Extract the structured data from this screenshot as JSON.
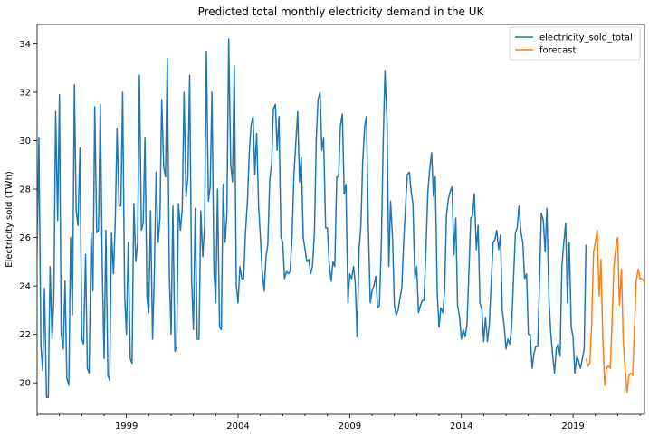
{
  "chart_data": {
    "type": "line",
    "title": "Predicted total monthly electricity demand in the UK",
    "xlabel": "",
    "ylabel": "Electricity sold (TWh)",
    "xlim": [
      1995.0,
      2022.2
    ],
    "ylim": [
      18.7,
      34.8
    ],
    "x_ticks": [
      1999,
      2004,
      2009,
      2014,
      2019
    ],
    "x_tick_labels": [
      "1999",
      "2004",
      "2009",
      "2014",
      "2019"
    ],
    "y_ticks": [
      20,
      22,
      24,
      26,
      28,
      30,
      32,
      34
    ],
    "y_tick_labels": [
      "20",
      "22",
      "24",
      "26",
      "28",
      "30",
      "32",
      "34"
    ],
    "legend_position": "top-right",
    "grid": false,
    "series": [
      {
        "name": "electricity_sold_total",
        "color": "#1f77b4",
        "x": [
          1995.0,
          1995.08,
          1995.17,
          1995.25,
          1995.33,
          1995.42,
          1995.5,
          1995.58,
          1995.67,
          1995.75,
          1995.83,
          1995.92,
          1996.0,
          1996.08,
          1996.17,
          1996.25,
          1996.33,
          1996.42,
          1996.5,
          1996.58,
          1996.67,
          1996.75,
          1996.83,
          1996.92,
          1997.0,
          1997.08,
          1997.17,
          1997.25,
          1997.33,
          1997.42,
          1997.5,
          1997.58,
          1997.67,
          1997.75,
          1997.83,
          1997.92,
          1998.0,
          1998.08,
          1998.17,
          1998.25,
          1998.33,
          1998.42,
          1998.5,
          1998.58,
          1998.67,
          1998.75,
          1998.83,
          1998.92,
          1999.0,
          1999.08,
          1999.17,
          1999.25,
          1999.33,
          1999.42,
          1999.5,
          1999.58,
          1999.67,
          1999.75,
          1999.83,
          1999.92,
          2000.0,
          2000.08,
          2000.17,
          2000.25,
          2000.33,
          2000.42,
          2000.5,
          2000.58,
          2000.67,
          2000.75,
          2000.83,
          2000.92,
          2001.0,
          2001.08,
          2001.17,
          2001.25,
          2001.33,
          2001.42,
          2001.5,
          2001.58,
          2001.67,
          2001.75,
          2001.83,
          2001.92,
          2002.0,
          2002.08,
          2002.17,
          2002.25,
          2002.33,
          2002.42,
          2002.5,
          2002.58,
          2002.67,
          2002.75,
          2002.83,
          2002.92,
          2003.0,
          2003.08,
          2003.17,
          2003.25,
          2003.33,
          2003.42,
          2003.5,
          2003.58,
          2003.67,
          2003.75,
          2003.83,
          2003.92,
          2004.0,
          2004.08,
          2004.17,
          2004.25,
          2004.33,
          2004.42,
          2004.5,
          2004.58,
          2004.67,
          2004.75,
          2004.83,
          2004.92,
          2005.0,
          2005.08,
          2005.17,
          2005.25,
          2005.33,
          2005.42,
          2005.5,
          2005.58,
          2005.67,
          2005.75,
          2005.83,
          2005.92,
          2006.0,
          2006.08,
          2006.17,
          2006.25,
          2006.33,
          2006.42,
          2006.5,
          2006.58,
          2006.67,
          2006.75,
          2006.83,
          2006.92,
          2007.0,
          2007.08,
          2007.17,
          2007.25,
          2007.33,
          2007.42,
          2007.5,
          2007.58,
          2007.67,
          2007.75,
          2007.83,
          2007.92,
          2008.0,
          2008.08,
          2008.17,
          2008.25,
          2008.33,
          2008.42,
          2008.5,
          2008.58,
          2008.67,
          2008.75,
          2008.83,
          2008.92,
          2009.0,
          2009.08,
          2009.17,
          2009.25,
          2009.33,
          2009.42,
          2009.5,
          2009.58,
          2009.67,
          2009.75,
          2009.83,
          2009.92,
          2010.0,
          2010.08,
          2010.17,
          2010.25,
          2010.33,
          2010.42,
          2010.5,
          2010.58,
          2010.67,
          2010.75,
          2010.83,
          2010.92,
          2011.0,
          2011.08,
          2011.17,
          2011.25,
          2011.33,
          2011.42,
          2011.5,
          2011.58,
          2011.67,
          2011.75,
          2011.83,
          2011.92,
          2012.0,
          2012.08,
          2012.17,
          2012.25,
          2012.33,
          2012.42,
          2012.5,
          2012.58,
          2012.67,
          2012.75,
          2012.83,
          2012.92,
          2013.0,
          2013.08,
          2013.17,
          2013.25,
          2013.33,
          2013.42,
          2013.5,
          2013.58,
          2013.67,
          2013.75,
          2013.83,
          2013.92,
          2014.0,
          2014.08,
          2014.17,
          2014.25,
          2014.33,
          2014.42,
          2014.5,
          2014.58,
          2014.67,
          2014.75,
          2014.83,
          2014.92,
          2015.0,
          2015.08,
          2015.17,
          2015.25,
          2015.33,
          2015.42,
          2015.5,
          2015.58,
          2015.67,
          2015.75,
          2015.83,
          2015.92,
          2016.0,
          2016.08,
          2016.17,
          2016.25,
          2016.33,
          2016.42,
          2016.5,
          2016.58,
          2016.67,
          2016.75,
          2016.83,
          2016.92,
          2017.0,
          2017.08,
          2017.17,
          2017.25,
          2017.33,
          2017.42,
          2017.5,
          2017.58,
          2017.67,
          2017.75,
          2017.83,
          2017.92,
          2018.0,
          2018.08,
          2018.17,
          2018.25,
          2018.33,
          2018.42,
          2018.5,
          2018.58,
          2018.67,
          2018.75,
          2018.83,
          2018.92,
          2019.0,
          2019.08,
          2019.17,
          2019.25,
          2019.33,
          2019.42,
          2019.5,
          2019.58
        ],
        "values": [
          25.2,
          30.1,
          21.5,
          20.5,
          23.9,
          19.4,
          19.4,
          24.8,
          21.8,
          23.5,
          31.2,
          26.7,
          31.9,
          22.0,
          21.4,
          24.2,
          20.2,
          19.9,
          26.0,
          22.8,
          32.3,
          27.1,
          26.5,
          29.7,
          21.8,
          21.6,
          25.3,
          20.6,
          20.4,
          26.2,
          23.8,
          31.4,
          26.2,
          26.3,
          31.5,
          24.6,
          21.0,
          26.3,
          20.3,
          20.1,
          26.2,
          24.5,
          26.7,
          30.5,
          27.3,
          27.3,
          32.0,
          23.6,
          22.0,
          25.8,
          21.0,
          20.8,
          27.4,
          25.0,
          25.8,
          32.7,
          26.3,
          26.6,
          30.1,
          23.5,
          22.9,
          27.1,
          21.8,
          24.5,
          28.7,
          25.8,
          26.8,
          31.7,
          28.9,
          28.5,
          33.4,
          24.5,
          22.0,
          27.3,
          21.3,
          21.5,
          27.4,
          26.3,
          27.2,
          32.0,
          27.7,
          28.5,
          32.7,
          24.2,
          22.2,
          27.2,
          21.8,
          21.8,
          27.1,
          25.2,
          26.5,
          33.7,
          27.5,
          28.1,
          32.0,
          24.6,
          23.3,
          28.0,
          22.3,
          22.2,
          28.2,
          25.8,
          27.0,
          34.2,
          29.0,
          28.3,
          33.1,
          24.0,
          23.3,
          24.8,
          24.3,
          24.3,
          26.2,
          27.5,
          29.5,
          30.6,
          31.0,
          28.6,
          30.3,
          27.3,
          26.0,
          24.6,
          23.8,
          25.2,
          25.7,
          28.4,
          29.0,
          31.3,
          31.5,
          29.6,
          31.0,
          26.0,
          25.8,
          24.3,
          24.6,
          24.5,
          24.6,
          26.1,
          28.6,
          29.8,
          31.2,
          28.3,
          29.3,
          26.0,
          25.5,
          25.0,
          25.1,
          24.5,
          24.8,
          26.2,
          30.0,
          31.7,
          32.0,
          29.6,
          30.1,
          26.4,
          26.4,
          24.9,
          24.2,
          25.0,
          24.8,
          28.5,
          28.5,
          30.6,
          31.1,
          27.8,
          28.2,
          23.3,
          24.5,
          24.3,
          24.8,
          24.1,
          21.9,
          25.5,
          26.5,
          29.1,
          30.6,
          31.0,
          26.6,
          23.3,
          23.8,
          24.0,
          24.4,
          23.1,
          23.2,
          25.9,
          30.0,
          32.9,
          30.8,
          24.8,
          27.5,
          25.9,
          23.2,
          22.8,
          23.0,
          23.5,
          23.9,
          25.9,
          27.3,
          28.6,
          28.7,
          27.9,
          27.4,
          24.3,
          24.8,
          22.9,
          23.2,
          23.4,
          23.4,
          25.7,
          27.9,
          28.8,
          29.5,
          27.7,
          28.5,
          23.7,
          22.3,
          23.1,
          22.9,
          23.8,
          26.9,
          27.6,
          27.9,
          28.1,
          25.3,
          26.8,
          23.2,
          22.7,
          21.8,
          22.2,
          21.9,
          22.4,
          24.4,
          26.8,
          26.9,
          27.8,
          25.5,
          26.5,
          23.3,
          23.0,
          21.7,
          22.7,
          21.7,
          22.4,
          24.0,
          25.8,
          25.9,
          26.3,
          25.5,
          26.1,
          23.0,
          22.3,
          21.4,
          21.8,
          21.6,
          22.3,
          24.2,
          26.2,
          26.4,
          27.3,
          26.2,
          25.8,
          24.3,
          24.5,
          22.0,
          22.0,
          20.6,
          21.2,
          21.5,
          21.5,
          24.2,
          27.0,
          26.7,
          25.4,
          27.2,
          23.5,
          22.1,
          21.2,
          20.4,
          21.4,
          21.6,
          21.1,
          24.8,
          25.7,
          26.6,
          23.3,
          25.8,
          22.3,
          21.9,
          20.4,
          21.1,
          20.9,
          20.6,
          21.0,
          21.4,
          25.7
        ]
      },
      {
        "name": "forecast",
        "color": "#ff7f0e",
        "x": [
          2019.58,
          2019.67,
          2019.75,
          2019.83,
          2019.92,
          2020.0,
          2020.08,
          2020.17,
          2020.25,
          2020.33,
          2020.42,
          2020.5,
          2020.58,
          2020.67,
          2020.75,
          2020.83,
          2020.92,
          2021.0,
          2021.08,
          2021.17,
          2021.25,
          2021.33,
          2021.42,
          2021.5,
          2021.58,
          2021.67,
          2021.75,
          2021.83,
          2021.92,
          2022.0,
          2022.08,
          2022.17
        ],
        "values": [
          21.0,
          20.7,
          20.8,
          22.3,
          25.4,
          25.8,
          26.3,
          23.6,
          25.1,
          21.9,
          19.9,
          20.6,
          20.7,
          20.6,
          22.6,
          24.8,
          25.6,
          26.0,
          23.2,
          24.7,
          21.7,
          20.6,
          19.6,
          20.3,
          20.4,
          20.3,
          22.2,
          24.2,
          24.7,
          24.3,
          24.3,
          24.2
        ]
      }
    ]
  }
}
